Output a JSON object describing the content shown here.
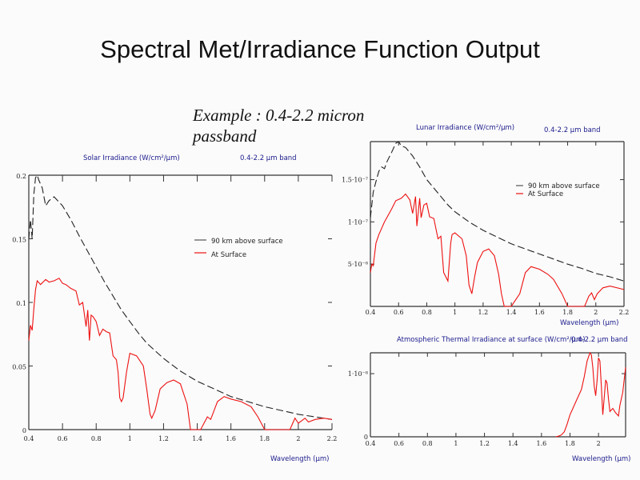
{
  "slide": {
    "title": "Spectral Met/Irradiance Function Output",
    "example_text": "Example : 0.4-2.2 micron passband"
  },
  "colors": {
    "above_surface": "#222222",
    "at_surface": "#ee1111",
    "chart_title": "#1a1a8c"
  },
  "chart_data": [
    {
      "type": "line",
      "title": "Solar Irradiance (W/cm²/µm)",
      "subtitle": "0.4-2.2 µm band",
      "xlabel": "Wavelength (µm)",
      "ylabel": "",
      "xlim": [
        0.4,
        2.2
      ],
      "ylim": [
        0,
        0.2
      ],
      "x_ticks": [
        "0.4",
        "0.6",
        "0.8",
        "1",
        "1.2",
        "1.4",
        "1.6",
        "1.8",
        "2",
        "2.2"
      ],
      "y_ticks": [
        "0",
        "0.05",
        "0.1",
        "0.15",
        "0.2"
      ],
      "grid": false,
      "legend": "center-right",
      "series": [
        {
          "name": "90 km above surface",
          "style": "dashed",
          "x": [
            0.4,
            0.41,
            0.42,
            0.43,
            0.44,
            0.45,
            0.46,
            0.48,
            0.5,
            0.52,
            0.55,
            0.6,
            0.65,
            0.7,
            0.75,
            0.8,
            0.85,
            0.9,
            0.95,
            1.0,
            1.05,
            1.1,
            1.2,
            1.3,
            1.4,
            1.5,
            1.6,
            1.7,
            1.8,
            1.9,
            2.0,
            2.1,
            2.2
          ],
          "y": [
            0.15,
            0.165,
            0.15,
            0.185,
            0.198,
            0.2,
            0.196,
            0.19,
            0.176,
            0.18,
            0.183,
            0.176,
            0.165,
            0.152,
            0.14,
            0.128,
            0.116,
            0.105,
            0.094,
            0.085,
            0.076,
            0.068,
            0.056,
            0.046,
            0.038,
            0.032,
            0.026,
            0.022,
            0.018,
            0.015,
            0.012,
            0.01,
            0.008
          ]
        },
        {
          "name": "At Surface",
          "style": "solid",
          "x": [
            0.4,
            0.41,
            0.42,
            0.43,
            0.44,
            0.45,
            0.47,
            0.5,
            0.52,
            0.55,
            0.58,
            0.6,
            0.62,
            0.65,
            0.68,
            0.7,
            0.72,
            0.74,
            0.75,
            0.76,
            0.77,
            0.78,
            0.8,
            0.82,
            0.84,
            0.86,
            0.88,
            0.9,
            0.92,
            0.93,
            0.94,
            0.95,
            0.96,
            0.98,
            1.0,
            1.04,
            1.08,
            1.1,
            1.12,
            1.13,
            1.15,
            1.18,
            1.22,
            1.26,
            1.3,
            1.34,
            1.36,
            1.42,
            1.44,
            1.46,
            1.48,
            1.52,
            1.56,
            1.6,
            1.66,
            1.72,
            1.76,
            1.8,
            1.95,
            1.97,
            1.98,
            2.0,
            2.02,
            2.04,
            2.06,
            2.1,
            2.15,
            2.2
          ],
          "y": [
            0.07,
            0.082,
            0.078,
            0.095,
            0.11,
            0.117,
            0.114,
            0.118,
            0.116,
            0.117,
            0.119,
            0.115,
            0.114,
            0.111,
            0.109,
            0.098,
            0.1,
            0.081,
            0.094,
            0.07,
            0.09,
            0.089,
            0.085,
            0.074,
            0.079,
            0.077,
            0.076,
            0.058,
            0.055,
            0.045,
            0.025,
            0.022,
            0.025,
            0.045,
            0.06,
            0.058,
            0.05,
            0.032,
            0.012,
            0.009,
            0.015,
            0.032,
            0.037,
            0.039,
            0.036,
            0.02,
            0.0,
            0.0,
            0.005,
            0.01,
            0.008,
            0.022,
            0.026,
            0.024,
            0.022,
            0.018,
            0.01,
            0.0,
            0.0,
            0.006,
            0.009,
            0.005,
            0.007,
            0.009,
            0.006,
            0.008,
            0.009,
            0.008
          ]
        }
      ]
    },
    {
      "type": "line",
      "title": "Lunar Irradiance (W/cm²/µm)",
      "subtitle": "0.4-2.2 µm band",
      "xlabel": "Wavelength (µm)",
      "ylabel": "",
      "xlim": [
        0.4,
        2.2
      ],
      "ylim": [
        0,
        1.95e-07
      ],
      "x_ticks": [
        "0.4",
        "0.6",
        "0.8",
        "1",
        "1.2",
        "1.4",
        "1.6",
        "1.8",
        "2",
        "2.2"
      ],
      "y_ticks": [
        "5·10⁻⁸",
        "1·10⁻⁷",
        "1.5·10⁻⁷"
      ],
      "y_tick_values": [
        5e-08,
        1e-07,
        1.5e-07
      ],
      "grid": false,
      "legend": "top-right",
      "series": [
        {
          "name": "90 km above surface",
          "style": "dashed",
          "x": [
            0.4,
            0.42,
            0.44,
            0.46,
            0.48,
            0.5,
            0.52,
            0.55,
            0.58,
            0.6,
            0.62,
            0.65,
            0.7,
            0.75,
            0.8,
            0.85,
            0.9,
            0.95,
            1.0,
            1.1,
            1.2,
            1.3,
            1.4,
            1.5,
            1.6,
            1.7,
            1.8,
            1.9,
            2.0,
            2.1,
            2.2
          ],
          "y": [
            1.05e-07,
            1.35e-07,
            1.48e-07,
            1.6e-07,
            1.65e-07,
            1.63e-07,
            1.72e-07,
            1.82e-07,
            1.93e-07,
            1.95e-07,
            1.9e-07,
            1.88e-07,
            1.78e-07,
            1.65e-07,
            1.5e-07,
            1.4e-07,
            1.3e-07,
            1.2e-07,
            1.12e-07,
            1e-07,
            9e-08,
            8.2e-08,
            7.4e-08,
            6.8e-08,
            6.2e-08,
            5.6e-08,
            5e-08,
            4.5e-08,
            3.9e-08,
            3.5e-08,
            3e-08
          ]
        },
        {
          "name": "At Surface",
          "style": "solid",
          "x": [
            0.4,
            0.41,
            0.42,
            0.44,
            0.46,
            0.5,
            0.55,
            0.58,
            0.62,
            0.65,
            0.68,
            0.7,
            0.72,
            0.73,
            0.75,
            0.76,
            0.78,
            0.8,
            0.82,
            0.85,
            0.88,
            0.9,
            0.92,
            0.95,
            0.97,
            0.98,
            1.0,
            1.05,
            1.08,
            1.1,
            1.12,
            1.14,
            1.16,
            1.2,
            1.24,
            1.28,
            1.31,
            1.33,
            1.35,
            1.4,
            1.42,
            1.46,
            1.5,
            1.54,
            1.6,
            1.66,
            1.7,
            1.76,
            1.8,
            1.92,
            1.95,
            1.97,
            1.99,
            2.01,
            2.05,
            2.1,
            2.2
          ],
          "y": [
            4e-08,
            5e-08,
            4.8e-08,
            7.5e-08,
            8.5e-08,
            1e-07,
            1.15e-07,
            1.25e-07,
            1.28e-07,
            1.33e-07,
            1.26e-07,
            1.1e-07,
            1.3e-07,
            9.5e-08,
            1.28e-07,
            1.05e-07,
            1.2e-07,
            1.22e-07,
            1.06e-07,
            1.04e-07,
            8e-08,
            8.3e-08,
            4e-08,
            3e-08,
            7.5e-08,
            8.5e-08,
            8.7e-08,
            8e-08,
            6e-08,
            2.5e-08,
            1.5e-08,
            3.5e-08,
            5.2e-08,
            6.5e-08,
            6.8e-08,
            6e-08,
            3.8e-08,
            1.5e-08,
            0.0,
            0.0,
            5e-09,
            1.5e-08,
            4e-08,
            4.7e-08,
            4.4e-08,
            3.8e-08,
            3.2e-08,
            1.5e-08,
            0.0,
            0.0,
            1.2e-08,
            1.6e-08,
            8e-09,
            1.5e-08,
            2.2e-08,
            2.4e-08,
            2e-08
          ]
        }
      ]
    },
    {
      "type": "line",
      "title": "Atmospheric Thermal Irradiance at surface (W/cm²/µm)",
      "subtitle": "0.4-2.2 µm band",
      "xlabel": "Wavelength (µm)",
      "ylabel": "",
      "xlim": [
        0.4,
        2.19
      ],
      "ylim": [
        0,
        1.33e-08
      ],
      "x_ticks": [
        "0.4",
        "0.6",
        "0.8",
        "1",
        "1.2",
        "1.4",
        "1.6",
        "1.8",
        "2"
      ],
      "y_ticks": [
        "0",
        "1·10⁻⁸"
      ],
      "y_tick_values": [
        0,
        1e-08
      ],
      "grid": false,
      "legend": "none",
      "series": [
        {
          "name": "At Surface",
          "style": "solid",
          "x": [
            1.7,
            1.72,
            1.74,
            1.76,
            1.78,
            1.8,
            1.82,
            1.85,
            1.88,
            1.9,
            1.92,
            1.94,
            1.95,
            1.96,
            1.97,
            1.98,
            1.99,
            2.0,
            2.01,
            2.02,
            2.03,
            2.05,
            2.06,
            2.07,
            2.08,
            2.1,
            2.12,
            2.14,
            2.15,
            2.17,
            2.19
          ],
          "y": [
            0.0,
            1e-10,
            3e-10,
            8e-10,
            2e-09,
            3.5e-09,
            4.5e-09,
            6e-09,
            7.5e-09,
            9.5e-09,
            1.2e-08,
            1.33e-08,
            1.3e-08,
            1.1e-08,
            8e-09,
            6.5e-09,
            9e-09,
            1.25e-08,
            1.2e-08,
            8e-09,
            3.5e-09,
            9e-09,
            8.5e-09,
            6e-09,
            4e-09,
            4.5e-09,
            3.8e-09,
            3.3e-09,
            5e-09,
            7e-09,
            1.1e-08
          ]
        }
      ]
    }
  ],
  "labels": {
    "solar_title": "Solar Irradiance (W/cm²/µm)",
    "solar_band": "0.4-2.2 µm band",
    "lunar_title": "Lunar Irradiance (W/cm²/µm)",
    "lunar_band": "0.4-2.2 µm band",
    "thermal_title": "Atmospheric Thermal Irradiance at surface (W/cm²/µm)",
    "thermal_band": "0.4-2.2 µm band",
    "xlabel": "Wavelength (µm)",
    "legend_above": "90 km above surface",
    "legend_surface": "At Surface"
  }
}
